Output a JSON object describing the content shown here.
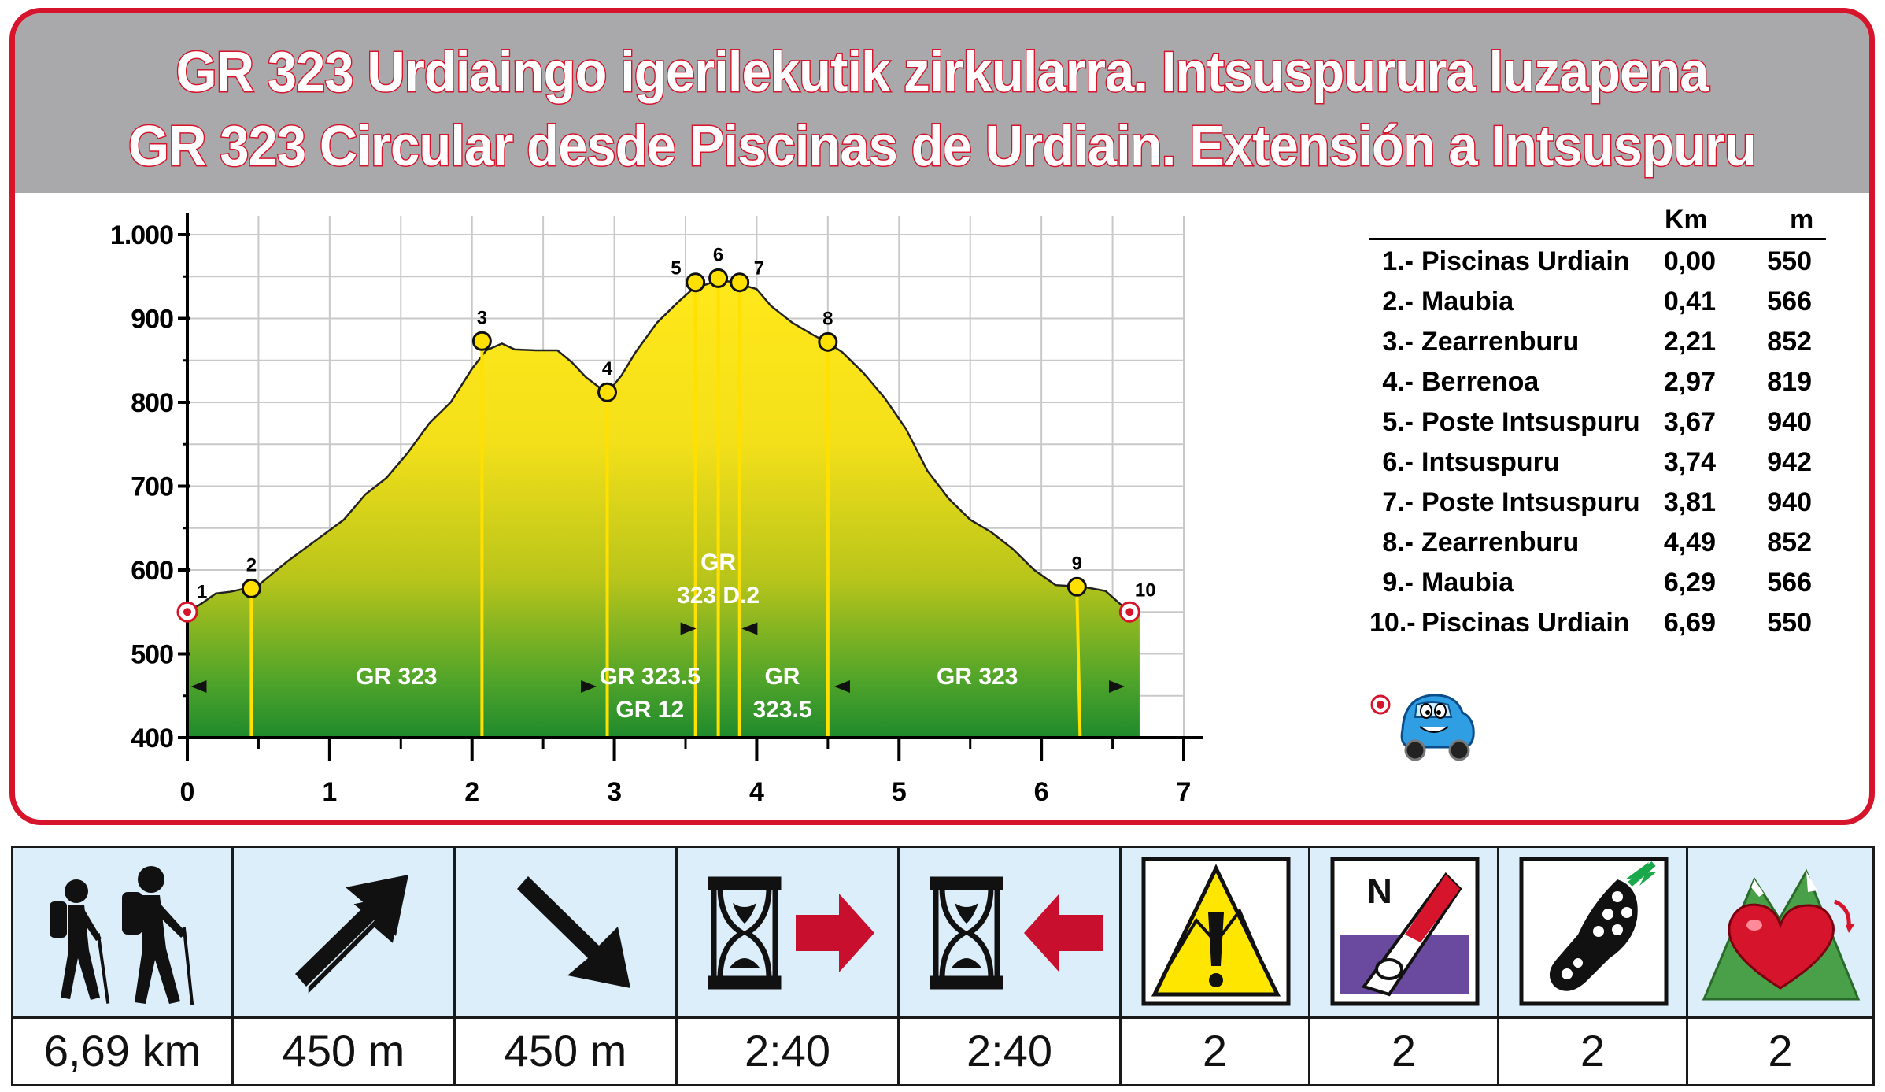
{
  "title": {
    "line1": "GR 323 Urdiaingo igerilekutik zirkularra. Intsuspurura luzapena",
    "line2": "GR 323 Circular desde Piscinas de Urdiain. Extensión a Intsuspuru"
  },
  "colors": {
    "border": "#d6142c",
    "title_band": "#a9a9ab",
    "fill_top": "#ffe81a",
    "fill_mid": "#b9c51a",
    "fill_bottom": "#1f8a2c",
    "marker_yellow": "#ffe000",
    "stats_background": "#dbeefa",
    "arrow_red": "#c8102e"
  },
  "chart_data": {
    "type": "area",
    "xlim": [
      0,
      7
    ],
    "ylim": [
      400,
      1000
    ],
    "x_ticks": [
      "0",
      "1",
      "2",
      "3",
      "4",
      "5",
      "6",
      "7"
    ],
    "y_ticks": [
      "400",
      "500",
      "600",
      "700",
      "800",
      "900",
      "1.000"
    ],
    "grid": true,
    "profile": [
      [
        0.0,
        550
      ],
      [
        0.1,
        560
      ],
      [
        0.2,
        572
      ],
      [
        0.3,
        574
      ],
      [
        0.41,
        578
      ],
      [
        0.5,
        582
      ],
      [
        0.7,
        610
      ],
      [
        0.9,
        635
      ],
      [
        1.1,
        660
      ],
      [
        1.25,
        690
      ],
      [
        1.4,
        710
      ],
      [
        1.55,
        740
      ],
      [
        1.7,
        775
      ],
      [
        1.85,
        800
      ],
      [
        2.0,
        840
      ],
      [
        2.1,
        862
      ],
      [
        2.21,
        870
      ],
      [
        2.3,
        863
      ],
      [
        2.45,
        862
      ],
      [
        2.6,
        862
      ],
      [
        2.7,
        848
      ],
      [
        2.8,
        830
      ],
      [
        2.9,
        817
      ],
      [
        2.97,
        815
      ],
      [
        3.05,
        832
      ],
      [
        3.15,
        860
      ],
      [
        3.3,
        895
      ],
      [
        3.45,
        920
      ],
      [
        3.55,
        935
      ],
      [
        3.67,
        942
      ],
      [
        3.74,
        945
      ],
      [
        3.81,
        944
      ],
      [
        3.9,
        940
      ],
      [
        4.0,
        935
      ],
      [
        4.1,
        915
      ],
      [
        4.25,
        895
      ],
      [
        4.4,
        880
      ],
      [
        4.49,
        872
      ],
      [
        4.6,
        860
      ],
      [
        4.75,
        835
      ],
      [
        4.9,
        805
      ],
      [
        5.05,
        768
      ],
      [
        5.2,
        718
      ],
      [
        5.35,
        685
      ],
      [
        5.5,
        660
      ],
      [
        5.65,
        645
      ],
      [
        5.8,
        625
      ],
      [
        5.95,
        600
      ],
      [
        6.1,
        582
      ],
      [
        6.29,
        580
      ],
      [
        6.45,
        575
      ],
      [
        6.55,
        560
      ],
      [
        6.62,
        550
      ],
      [
        6.69,
        550
      ]
    ],
    "waypoints": [
      {
        "label": "1",
        "x": 0.0,
        "y": 550,
        "kind": "start"
      },
      {
        "label": "2",
        "x": 0.45,
        "y": 578
      },
      {
        "label": "3",
        "x": 2.07,
        "y": 873
      },
      {
        "label": "4",
        "x": 2.95,
        "y": 812
      },
      {
        "label": "5",
        "x": 3.57,
        "y": 943
      },
      {
        "label": "6",
        "x": 3.73,
        "y": 948
      },
      {
        "label": "7",
        "x": 3.88,
        "y": 943
      },
      {
        "label": "8",
        "x": 4.5,
        "y": 872
      },
      {
        "label": "9",
        "x": 6.25,
        "y": 580
      },
      {
        "label": "10",
        "x": 6.62,
        "y": 550,
        "kind": "end"
      }
    ],
    "segments": [
      {
        "lines": [
          "GR 323"
        ],
        "x": 1.47,
        "y": 464
      },
      {
        "lines": [
          "GR 323.5",
          "GR 12"
        ],
        "x": 3.25,
        "y": 464
      },
      {
        "lines": [
          "GR",
          "323 D.2"
        ],
        "x": 3.73,
        "y": 600
      },
      {
        "lines": [
          "GR",
          "323.5"
        ],
        "x": 4.18,
        "y": 464
      },
      {
        "lines": [
          "GR 323"
        ],
        "x": 5.55,
        "y": 464
      }
    ],
    "section_arrows": [
      {
        "x": 0.08,
        "y": 461,
        "dir": "left"
      },
      {
        "x": 2.82,
        "y": 461,
        "dir": "right"
      },
      {
        "x": 3.52,
        "y": 530,
        "dir": "right"
      },
      {
        "x": 3.95,
        "y": 530,
        "dir": "left"
      },
      {
        "x": 4.6,
        "y": 461,
        "dir": "left"
      },
      {
        "x": 6.53,
        "y": 461,
        "dir": "right"
      }
    ]
  },
  "waypoint_table": {
    "header_km": "Km",
    "header_m": "m",
    "rows": [
      {
        "num": "1.-",
        "name": "Piscinas Urdiain",
        "km": "0,00",
        "m": "550"
      },
      {
        "num": "2.-",
        "name": "Maubia",
        "km": "0,41",
        "m": "566"
      },
      {
        "num": "3.-",
        "name": "Zearrenburu",
        "km": "2,21",
        "m": "852"
      },
      {
        "num": "4.-",
        "name": "Berrenoa",
        "km": "2,97",
        "m": "819"
      },
      {
        "num": "5.-",
        "name": "Poste Intsuspuru",
        "km": "3,67",
        "m": "940"
      },
      {
        "num": "6.-",
        "name": "Intsuspuru",
        "km": "3,74",
        "m": "942"
      },
      {
        "num": "7.-",
        "name": "Poste Intsuspuru",
        "km": "3,81",
        "m": "940"
      },
      {
        "num": "8.-",
        "name": "Zearrenburu",
        "km": "4,49",
        "m": "852"
      },
      {
        "num": "9.-",
        "name": "Maubia",
        "km": "6,29",
        "m": "566"
      },
      {
        "num": "10.-",
        "name": "Piscinas Urdiain",
        "km": "6,69",
        "m": "550"
      }
    ]
  },
  "legend": {
    "icon": "car-icon"
  },
  "stats": [
    {
      "icon": "hikers-icon",
      "value": "6,69 km"
    },
    {
      "icon": "ascent-arrow-icon",
      "value": "450 m"
    },
    {
      "icon": "descent-arrow-icon",
      "value": "450 m"
    },
    {
      "icon": "hourglass-forward-icon",
      "value": "2:40"
    },
    {
      "icon": "hourglass-return-icon",
      "value": "2:40"
    },
    {
      "icon": "danger-sign-icon",
      "value": "2"
    },
    {
      "icon": "compass-icon",
      "value": "2"
    },
    {
      "icon": "footprint-icon",
      "value": "2"
    },
    {
      "icon": "heart-mountain-icon",
      "value": "2"
    }
  ]
}
